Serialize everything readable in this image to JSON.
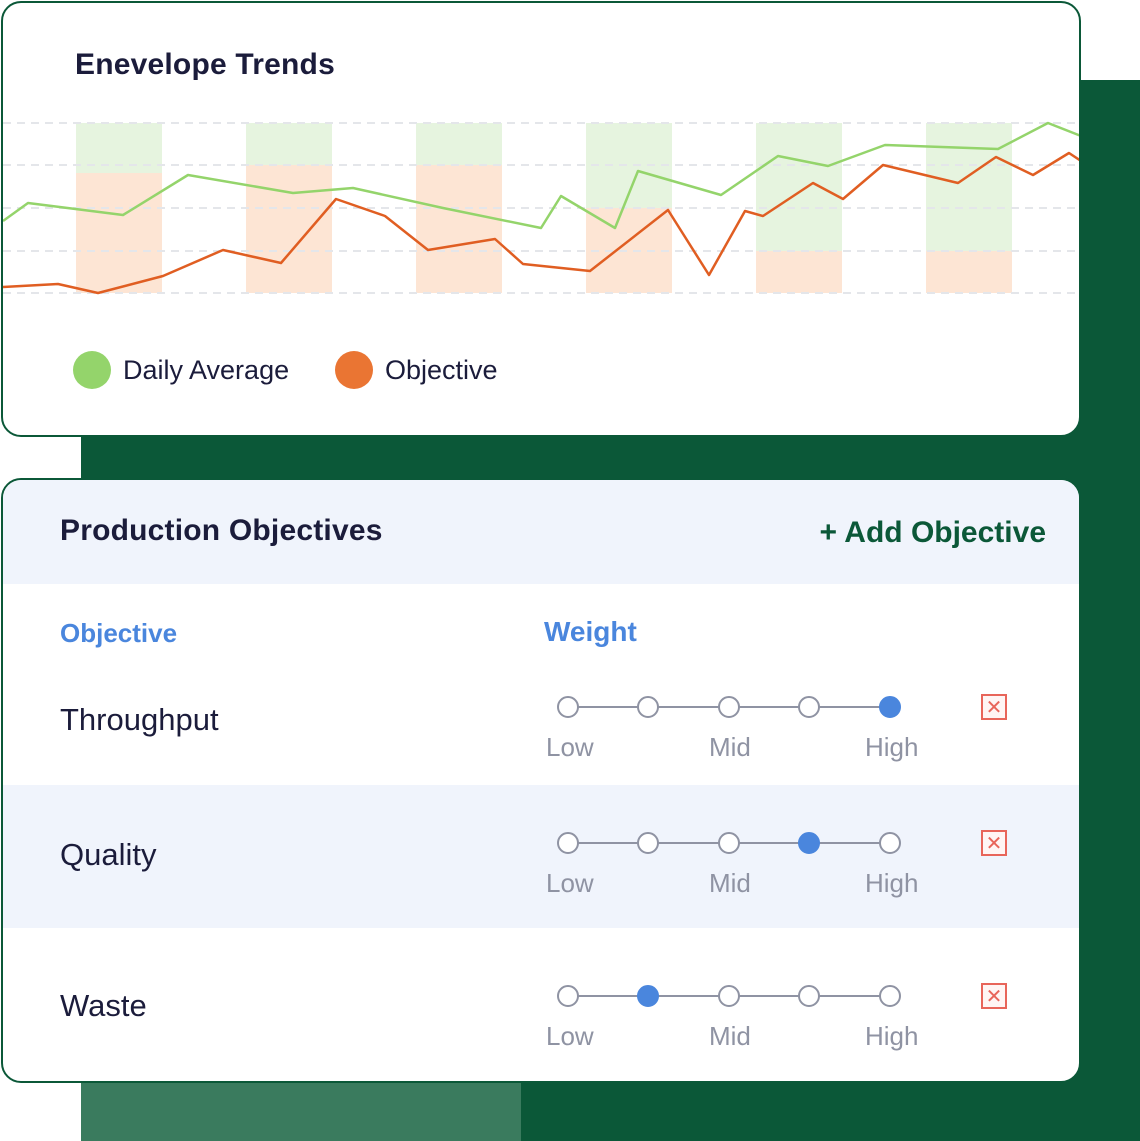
{
  "trends": {
    "title": "Enevelope Trends",
    "legend": [
      {
        "label": "Daily Average",
        "color": "#94d46b"
      },
      {
        "label": "Objective",
        "color": "#ea7533"
      }
    ]
  },
  "chart_data": {
    "type": "line",
    "grid": "dashed horizontal",
    "legend_position": "bottom-left",
    "series": [
      {
        "name": "Daily Average",
        "color": "#94d46b"
      },
      {
        "name": "Objective",
        "color": "#ea7533"
      }
    ]
  },
  "objectives": {
    "title": "Production Objectives",
    "add_label": "+ Add Objective",
    "col_objective": "Objective",
    "col_weight": "Weight",
    "scale": {
      "low": "Low",
      "mid": "Mid",
      "high": "High"
    },
    "rows": [
      {
        "name": "Throughput",
        "weight_level": 5,
        "weight_max": 5
      },
      {
        "name": "Quality",
        "weight_level": 4,
        "weight_max": 5
      },
      {
        "name": "Waste",
        "weight_level": 2,
        "weight_max": 5
      }
    ],
    "delete_icon": "close-x-icon"
  },
  "colors": {
    "brand_green": "#0b5838",
    "accent_blue": "#4a86dd",
    "delete_red": "#e8655a"
  }
}
